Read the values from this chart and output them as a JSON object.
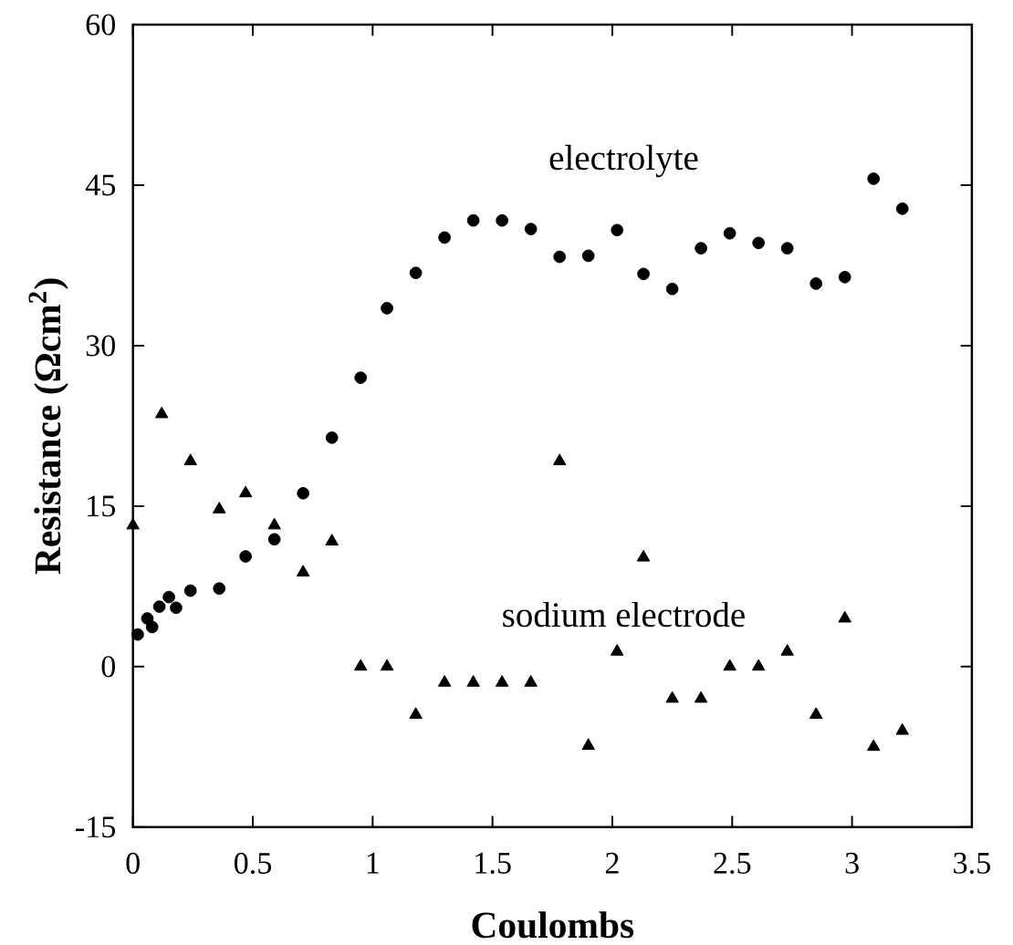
{
  "chart_data": {
    "type": "scatter",
    "xlabel": "Coulombs",
    "ylabel": "Resistance (Ωcm$^{2}$)",
    "xlim": [
      0,
      3.5
    ],
    "ylim": [
      -15,
      60
    ],
    "xticks": [
      0,
      0.5,
      1,
      1.5,
      2,
      2.5,
      3,
      3.5
    ],
    "yticks": [
      -15,
      0,
      15,
      30,
      45,
      60
    ],
    "grid": false,
    "legend": false,
    "series": [
      {
        "name": "electrolyte",
        "color": "#000000",
        "marker": "circle",
        "x": [
          0.02,
          0.06,
          0.08,
          0.11,
          0.15,
          0.18,
          0.24,
          0.36,
          0.47,
          0.59,
          0.71,
          0.83,
          0.95,
          1.06,
          1.18,
          1.3,
          1.42,
          1.54,
          1.66,
          1.78,
          1.9,
          2.02,
          2.13,
          2.25,
          2.37,
          2.49,
          2.61,
          2.73,
          2.85,
          2.97,
          3.09,
          3.21
        ],
        "values": [
          3.0,
          4.5,
          3.7,
          5.6,
          6.5,
          5.5,
          7.1,
          7.3,
          10.3,
          11.9,
          16.2,
          21.4,
          27.0,
          33.5,
          36.8,
          40.1,
          41.7,
          41.7,
          40.9,
          38.3,
          38.4,
          40.8,
          36.7,
          35.3,
          39.1,
          40.5,
          39.6,
          39.1,
          35.8,
          36.4,
          45.6,
          42.8
        ]
      },
      {
        "name": "sodium electrode",
        "color": "#000000",
        "marker": "triangle",
        "x": [
          0,
          0.12,
          0.24,
          0.36,
          0.47,
          0.59,
          0.71,
          0.83,
          0.95,
          1.06,
          1.18,
          1.3,
          1.42,
          1.54,
          1.66,
          1.78,
          1.9,
          2.02,
          2.13,
          2.25,
          2.37,
          2.49,
          2.61,
          2.73,
          2.85,
          2.97,
          3.09,
          3.21
        ],
        "values": [
          13.2,
          23.6,
          19.2,
          14.7,
          16.2,
          13.2,
          8.8,
          11.7,
          0,
          0,
          -4.5,
          -1.5,
          -1.5,
          -1.5,
          -1.5,
          19.2,
          -7.4,
          1.4,
          10.2,
          -3.0,
          -3.0,
          0,
          0,
          1.4,
          -4.5,
          4.5,
          -7.5,
          -6.0
        ]
      }
    ]
  }
}
